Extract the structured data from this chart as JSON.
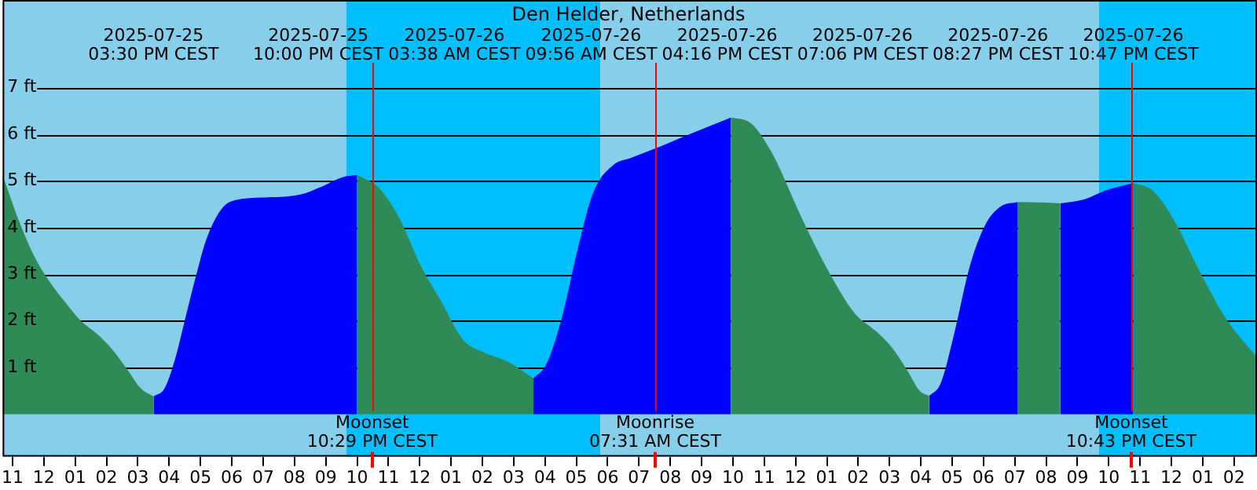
{
  "chart_data": {
    "type": "area",
    "title": "Den Helder, Netherlands",
    "xlim": [
      "2025-07-25T10:41",
      "2025-07-27T02:44"
    ],
    "ylim": [
      -0.91,
      8.88
    ],
    "xticks": [
      {
        "value": "2025-07-25T11:00",
        "label": "11"
      },
      {
        "value": "2025-07-25T12:00",
        "label": "12"
      },
      {
        "value": "2025-07-25T13:00",
        "label": "01"
      },
      {
        "value": "2025-07-25T14:00",
        "label": "02"
      },
      {
        "value": "2025-07-25T15:00",
        "label": "03"
      },
      {
        "value": "2025-07-25T16:00",
        "label": "04"
      },
      {
        "value": "2025-07-25T17:00",
        "label": "05"
      },
      {
        "value": "2025-07-25T18:00",
        "label": "06"
      },
      {
        "value": "2025-07-25T19:00",
        "label": "07"
      },
      {
        "value": "2025-07-25T20:00",
        "label": "08"
      },
      {
        "value": "2025-07-25T21:00",
        "label": "09"
      },
      {
        "value": "2025-07-25T22:00",
        "label": "10"
      },
      {
        "value": "2025-07-25T23:00",
        "label": "11"
      },
      {
        "value": "2025-07-26T00:00",
        "label": "12"
      },
      {
        "value": "2025-07-26T01:00",
        "label": "01"
      },
      {
        "value": "2025-07-26T02:00",
        "label": "02"
      },
      {
        "value": "2025-07-26T03:00",
        "label": "03"
      },
      {
        "value": "2025-07-26T04:00",
        "label": "04"
      },
      {
        "value": "2025-07-26T05:00",
        "label": "05"
      },
      {
        "value": "2025-07-26T06:00",
        "label": "06"
      },
      {
        "value": "2025-07-26T07:00",
        "label": "07"
      },
      {
        "value": "2025-07-26T08:00",
        "label": "08"
      },
      {
        "value": "2025-07-26T09:00",
        "label": "09"
      },
      {
        "value": "2025-07-26T10:00",
        "label": "10"
      },
      {
        "value": "2025-07-26T11:00",
        "label": "11"
      },
      {
        "value": "2025-07-26T12:00",
        "label": "12"
      },
      {
        "value": "2025-07-26T13:00",
        "label": "01"
      },
      {
        "value": "2025-07-26T14:00",
        "label": "02"
      },
      {
        "value": "2025-07-26T15:00",
        "label": "03"
      },
      {
        "value": "2025-07-26T16:00",
        "label": "04"
      },
      {
        "value": "2025-07-26T17:00",
        "label": "05"
      },
      {
        "value": "2025-07-26T18:00",
        "label": "06"
      },
      {
        "value": "2025-07-26T19:00",
        "label": "07"
      },
      {
        "value": "2025-07-26T20:00",
        "label": "08"
      },
      {
        "value": "2025-07-26T21:00",
        "label": "09"
      },
      {
        "value": "2025-07-26T22:00",
        "label": "10"
      },
      {
        "value": "2025-07-26T23:00",
        "label": "11"
      },
      {
        "value": "2025-07-27T00:00",
        "label": "12"
      },
      {
        "value": "2025-07-27T01:00",
        "label": "01"
      },
      {
        "value": "2025-07-27T02:00",
        "label": "02"
      }
    ],
    "yticks": [
      {
        "value": 1,
        "label": "1 ft"
      },
      {
        "value": 2,
        "label": "2 ft"
      },
      {
        "value": 3,
        "label": "3 ft"
      },
      {
        "value": 4,
        "label": "4 ft"
      },
      {
        "value": 5,
        "label": "5 ft"
      },
      {
        "value": 6,
        "label": "6 ft"
      },
      {
        "value": 7,
        "label": "7 ft"
      }
    ],
    "grid": "y",
    "bands": [
      {
        "axis": "x",
        "from": "2025-07-25T10:41",
        "to": "2025-07-25T21:39",
        "color": "#87ceeb"
      },
      {
        "axis": "x",
        "from": "2025-07-25T21:39",
        "to": "2025-07-26T05:46",
        "color": "#00bfff"
      },
      {
        "axis": "x",
        "from": "2025-07-26T05:46",
        "to": "2025-07-26T21:41",
        "color": "#87ceeb"
      },
      {
        "axis": "x",
        "from": "2025-07-26T21:41",
        "to": "2025-07-27T02:44",
        "color": "#00bfff"
      }
    ],
    "ref_lines": [
      {
        "axis": "x",
        "value": "2025-07-25T22:29",
        "label": "Moonset\n10:29 PM CEST",
        "color": "#ff0000"
      },
      {
        "axis": "x",
        "value": "2025-07-26T07:31",
        "label": "Moonrise\n07:31 AM CEST",
        "color": "#ff0000"
      },
      {
        "axis": "x",
        "value": "2025-07-26T22:43",
        "label": "Moonset\n10:43 PM CEST",
        "color": "#ff0000"
      }
    ],
    "series": [
      {
        "color": "#2e8b57",
        "x": [
          "2025-07-25T10:41",
          "2025-07-25T11:11",
          "2025-07-25T11:41",
          "2025-07-25T12:11",
          "2025-07-25T12:41",
          "2025-07-25T13:11",
          "2025-07-25T13:41",
          "2025-07-25T14:11",
          "2025-07-25T14:41",
          "2025-07-25T15:06",
          "2025-07-25T15:30"
        ],
        "values": [
          5.13,
          4.18,
          3.4,
          2.84,
          2.4,
          2.0,
          1.73,
          1.39,
          0.94,
          0.55,
          0.38
        ]
      },
      {
        "color": "#0000ff",
        "x": [
          "2025-07-25T15:30",
          "2025-07-25T15:51",
          "2025-07-25T16:11",
          "2025-07-25T16:31",
          "2025-07-25T16:51",
          "2025-07-25T17:11",
          "2025-07-25T17:41",
          "2025-07-25T18:11",
          "2025-07-25T19:11",
          "2025-07-25T20:11",
          "2025-07-25T20:52",
          "2025-07-25T21:32",
          "2025-07-25T22:00"
        ],
        "values": [
          0.38,
          0.55,
          1.17,
          2.06,
          2.95,
          3.74,
          4.41,
          4.6,
          4.65,
          4.71,
          4.88,
          5.08,
          5.13
        ]
      },
      {
        "color": "#2e8b57",
        "x": [
          "2025-07-25T22:00",
          "2025-07-25T22:42",
          "2025-07-25T23:22",
          "2025-07-26T00:02",
          "2025-07-26T00:42",
          "2025-07-26T01:22",
          "2025-07-26T02:02",
          "2025-07-26T02:52",
          "2025-07-26T03:22",
          "2025-07-26T03:38"
        ],
        "values": [
          5.13,
          4.85,
          4.18,
          3.18,
          2.4,
          1.61,
          1.33,
          1.11,
          0.89,
          0.77
        ]
      },
      {
        "color": "#0000ff",
        "x": [
          "2025-07-26T03:38",
          "2025-07-26T04:02",
          "2025-07-26T04:32",
          "2025-07-26T05:02",
          "2025-07-26T05:32",
          "2025-07-26T06:13",
          "2025-07-26T06:43",
          "2025-07-26T07:43",
          "2025-07-26T08:43",
          "2025-07-26T09:56"
        ],
        "values": [
          0.77,
          1.06,
          2.06,
          3.51,
          4.74,
          5.36,
          5.49,
          5.75,
          6.03,
          6.36
        ]
      },
      {
        "color": "#2e8b57",
        "x": [
          "2025-07-26T09:56",
          "2025-07-26T10:33",
          "2025-07-26T11:13",
          "2025-07-26T12:13",
          "2025-07-26T13:03",
          "2025-07-26T13:53",
          "2025-07-26T14:34",
          "2025-07-26T15:04",
          "2025-07-26T15:34",
          "2025-07-26T15:58",
          "2025-07-26T16:16"
        ],
        "values": [
          6.36,
          6.25,
          5.64,
          4.18,
          3.07,
          2.17,
          1.78,
          1.44,
          0.94,
          0.5,
          0.39
        ]
      },
      {
        "color": "#0000ff",
        "x": [
          "2025-07-26T16:16",
          "2025-07-26T16:38",
          "2025-07-26T17:04",
          "2025-07-26T17:34",
          "2025-07-26T18:04",
          "2025-07-26T18:34",
          "2025-07-26T19:06"
        ],
        "values": [
          0.39,
          0.66,
          1.73,
          3.18,
          4.07,
          4.46,
          4.55
        ]
      },
      {
        "color": "#2e8b57",
        "x": [
          "2025-07-26T19:06",
          "2025-07-26T19:49",
          "2025-07-26T20:27"
        ],
        "values": [
          4.55,
          4.54,
          4.52
        ]
      },
      {
        "color": "#0000ff",
        "x": [
          "2025-07-26T20:27",
          "2025-07-26T21:14",
          "2025-07-26T21:54",
          "2025-07-26T22:47"
        ],
        "values": [
          4.52,
          4.61,
          4.8,
          4.96
        ]
      },
      {
        "color": "#2e8b57",
        "x": [
          "2025-07-26T22:47",
          "2025-07-26T23:24",
          "2025-07-27T00:04",
          "2025-07-27T00:54",
          "2025-07-27T01:44",
          "2025-07-27T02:44"
        ],
        "values": [
          4.96,
          4.8,
          4.18,
          3.07,
          2.06,
          1.22
        ]
      }
    ],
    "annotations": [
      "2025-07-25\n03:30 PM CEST",
      "2025-07-25\n10:00 PM CEST",
      "2025-07-26\n03:38 AM CEST",
      "2025-07-26\n09:56 AM CEST",
      "2025-07-26\n04:16 PM CEST",
      "2025-07-26\n07:06 PM CEST",
      "2025-07-26\n08:27 PM CEST",
      "2025-07-26\n10:47 PM CEST"
    ]
  }
}
